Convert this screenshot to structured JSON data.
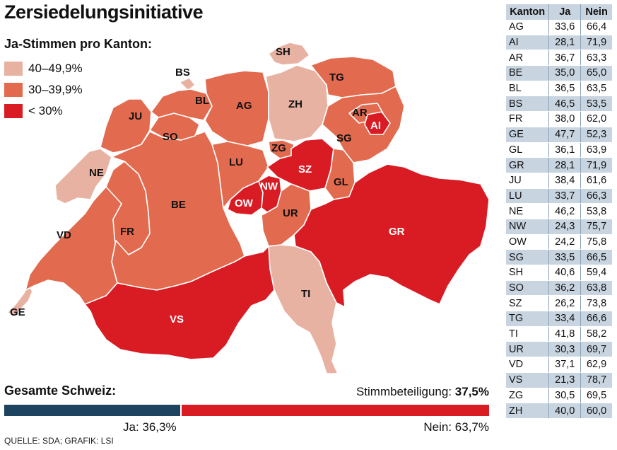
{
  "title": "Zersiedelungsinitiative",
  "legend": {
    "title": "Ja-Stimmen pro Kanton:",
    "items": [
      {
        "label": "40–49,9%",
        "color": "#e8b2a2"
      },
      {
        "label": "30–39,9%",
        "color": "#e26a4f"
      },
      {
        "label": "< 30%",
        "color": "#d91c24"
      }
    ]
  },
  "map": {
    "cantons": [
      {
        "code": "GE",
        "label": "GE",
        "class": "40–49,9%"
      },
      {
        "code": "VD",
        "label": "VD",
        "class": "30–39,9%"
      },
      {
        "code": "NE",
        "label": "NE",
        "class": "40–49,9%"
      },
      {
        "code": "JU",
        "label": "JU",
        "class": "30–39,9%"
      },
      {
        "code": "FR",
        "label": "FR",
        "class": "30–39,9%"
      },
      {
        "code": "BE",
        "label": "BE",
        "class": "30–39,9%"
      },
      {
        "code": "SO",
        "label": "SO",
        "class": "30–39,9%"
      },
      {
        "code": "BS",
        "label": "BS",
        "class": "40–49,9%"
      },
      {
        "code": "BL",
        "label": "BL",
        "class": "30–39,9%"
      },
      {
        "code": "AG",
        "label": "AG",
        "class": "30–39,9%"
      },
      {
        "code": "LU",
        "label": "LU",
        "class": "30–39,9%"
      },
      {
        "code": "ZH",
        "label": "ZH",
        "class": "40–49,9%"
      },
      {
        "code": "SH",
        "label": "SH",
        "class": "40–49,9%"
      },
      {
        "code": "TG",
        "label": "TG",
        "class": "30–39,9%"
      },
      {
        "code": "ZG",
        "label": "ZG",
        "class": "30–39,9%"
      },
      {
        "code": "SZ",
        "label": "SZ",
        "class": "< 30%"
      },
      {
        "code": "NW",
        "label": "NW",
        "class": "< 30%"
      },
      {
        "code": "OW",
        "label": "OW",
        "class": "< 30%"
      },
      {
        "code": "UR",
        "label": "UR",
        "class": "30–39,9%"
      },
      {
        "code": "GL",
        "label": "GL",
        "class": "30–39,9%"
      },
      {
        "code": "SG",
        "label": "SG",
        "class": "30–39,9%"
      },
      {
        "code": "AR",
        "label": "AR",
        "class": "30–39,9%"
      },
      {
        "code": "AI",
        "label": "AI",
        "class": "< 30%"
      },
      {
        "code": "GR",
        "label": "GR",
        "class": "< 30%"
      },
      {
        "code": "TI",
        "label": "TI",
        "class": "40–49,9%"
      },
      {
        "code": "VS",
        "label": "VS",
        "class": "< 30%"
      }
    ]
  },
  "total": {
    "label": "Gesamte Schweiz:",
    "turnout_label": "Stimmbeteiligung:",
    "turnout_value": "37,5%",
    "ja_label": "Ja: 36,3%",
    "nein_label": "Nein: 63,7%",
    "ja_percent": 36.3,
    "nein_percent": 63.7,
    "ja_color": "#1d4360",
    "nein_color": "#d91c24"
  },
  "source": "QUELLE: SDA; GRAFIK: LSI",
  "table": {
    "headers": [
      "Kanton",
      "Ja",
      "Nein"
    ],
    "rows": [
      [
        "AG",
        "33,6",
        "66,4"
      ],
      [
        "AI",
        "28,1",
        "71,9"
      ],
      [
        "AR",
        "36,7",
        "63,3"
      ],
      [
        "BE",
        "35,0",
        "65,0"
      ],
      [
        "BL",
        "36,5",
        "63,5"
      ],
      [
        "BS",
        "46,5",
        "53,5"
      ],
      [
        "FR",
        "38,0",
        "62,0"
      ],
      [
        "GE",
        "47,7",
        "52,3"
      ],
      [
        "GL",
        "36,1",
        "63,9"
      ],
      [
        "GR",
        "28,1",
        "71,9"
      ],
      [
        "JU",
        "38,4",
        "61,6"
      ],
      [
        "LU",
        "33,7",
        "66,3"
      ],
      [
        "NE",
        "46,2",
        "53,8"
      ],
      [
        "NW",
        "24,3",
        "75,7"
      ],
      [
        "OW",
        "24,2",
        "75,8"
      ],
      [
        "SG",
        "33,5",
        "66,5"
      ],
      [
        "SH",
        "40,6",
        "59,4"
      ],
      [
        "SO",
        "36,2",
        "63,8"
      ],
      [
        "SZ",
        "26,2",
        "73,8"
      ],
      [
        "TG",
        "33,4",
        "66,6"
      ],
      [
        "TI",
        "41,8",
        "58,2"
      ],
      [
        "UR",
        "30,3",
        "69,7"
      ],
      [
        "VD",
        "37,1",
        "62,9"
      ],
      [
        "VS",
        "21,3",
        "78,7"
      ],
      [
        "ZG",
        "30,5",
        "69,5"
      ],
      [
        "ZH",
        "40,0",
        "60,0"
      ]
    ]
  }
}
